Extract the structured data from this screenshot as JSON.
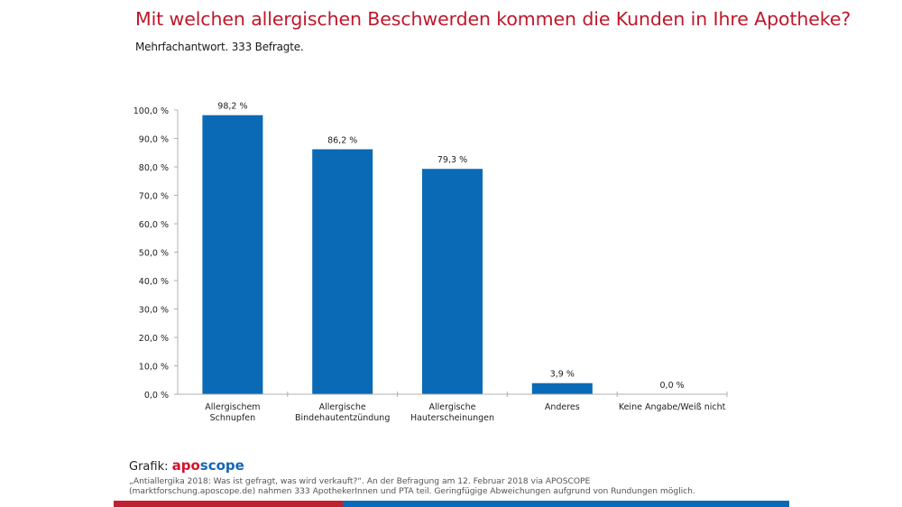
{
  "header": {
    "title": "Mit welchen allergischen Beschwerden kommen die Kunden in Ihre Apotheke?",
    "subtitle": "Mehrfachantwort. 333 Befragte."
  },
  "colors": {
    "title": "#c0172b",
    "bar": "#0a6ab6",
    "axis": "#b0b0b0",
    "stripe_red": "#c0202f",
    "stripe_blue": "#0a6ab6"
  },
  "chart_data": {
    "type": "bar",
    "title": "Mit welchen allergischen Beschwerden kommen die Kunden in Ihre Apotheke?",
    "subtitle": "Mehrfachantwort. 333 Befragte.",
    "xlabel": "",
    "ylabel": "",
    "ylim": [
      0,
      100
    ],
    "yticks": [
      0,
      10,
      20,
      30,
      40,
      50,
      60,
      70,
      80,
      90,
      100
    ],
    "ytick_labels": [
      "0,0 %",
      "10,0 %",
      "20,0 %",
      "30,0 %",
      "40,0 %",
      "50,0 %",
      "60,0 %",
      "70,0 %",
      "80,0 %",
      "90,0 %",
      "100,0 %"
    ],
    "grid": false,
    "legend": "none",
    "categories": [
      [
        "Allergischem",
        "Schnupfen"
      ],
      [
        "Allergische",
        "Bindehautentzündung"
      ],
      [
        "Allergische",
        "Hauterscheinungen"
      ],
      [
        "Anderes"
      ],
      [
        "Keine Angabe/Weiß nicht"
      ]
    ],
    "values": [
      98.2,
      86.2,
      79.3,
      3.9,
      0.0
    ],
    "value_labels": [
      "98,2 %",
      "86,2 %",
      "79,3 %",
      "3,9 %",
      "0,0 %"
    ]
  },
  "footer": {
    "grafik_label": "Grafik:",
    "brand_part1": "apo",
    "brand_part2": "scope",
    "source_line1": "„Antiallergika 2018: Was ist gefragt, was wird verkauft?“. An der Befragung am 12. Februar 2018 via APOSCOPE",
    "source_line2": "(marktforschung.aposcope.de) nahmen 333 ApothekerInnen und PTA teil. Geringfügige Abweichungen aufgrund von Rundungen möglich."
  }
}
